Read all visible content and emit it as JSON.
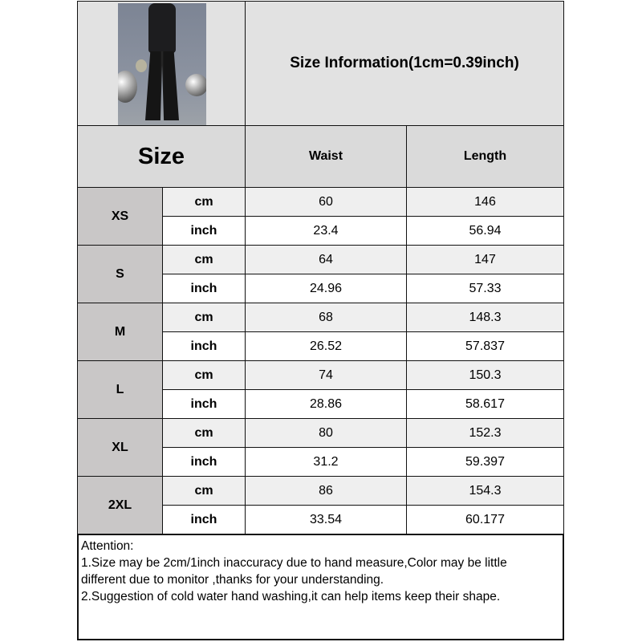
{
  "title": "Size Information(1cm=0.39inch)",
  "header": {
    "size": "Size",
    "waist": "Waist",
    "length": "Length"
  },
  "units": {
    "cm": "cm",
    "inch": "inch"
  },
  "rows": [
    {
      "size": "XS",
      "cm": {
        "waist": "60",
        "length": "146"
      },
      "inch": {
        "waist": "23.4",
        "length": "56.94"
      }
    },
    {
      "size": "S",
      "cm": {
        "waist": "64",
        "length": "147"
      },
      "inch": {
        "waist": "24.96",
        "length": "57.33"
      }
    },
    {
      "size": "M",
      "cm": {
        "waist": "68",
        "length": "148.3"
      },
      "inch": {
        "waist": "26.52",
        "length": "57.837"
      }
    },
    {
      "size": "L",
      "cm": {
        "waist": "74",
        "length": "150.3"
      },
      "inch": {
        "waist": "28.86",
        "length": "58.617"
      }
    },
    {
      "size": "XL",
      "cm": {
        "waist": "80",
        "length": "152.3"
      },
      "inch": {
        "waist": "31.2",
        "length": "59.397"
      }
    },
    {
      "size": "2XL",
      "cm": {
        "waist": "86",
        "length": "154.3"
      },
      "inch": {
        "waist": "33.54",
        "length": "60.177"
      }
    }
  ],
  "notes": {
    "heading": "Attention:",
    "line1": "1.Size may be 2cm/1inch inaccuracy due to hand measure,Color may be little",
    "line1b": "different due to monitor ,thanks for your understanding.",
    "line2": "2.Suggestion of cold water hand washing,it can help items keep their shape."
  },
  "colors": {
    "header_bg": "#e2e2e2",
    "size_bg": "#c9c7c7",
    "cm_row_bg": "#efefef",
    "inch_row_bg": "#ffffff"
  }
}
